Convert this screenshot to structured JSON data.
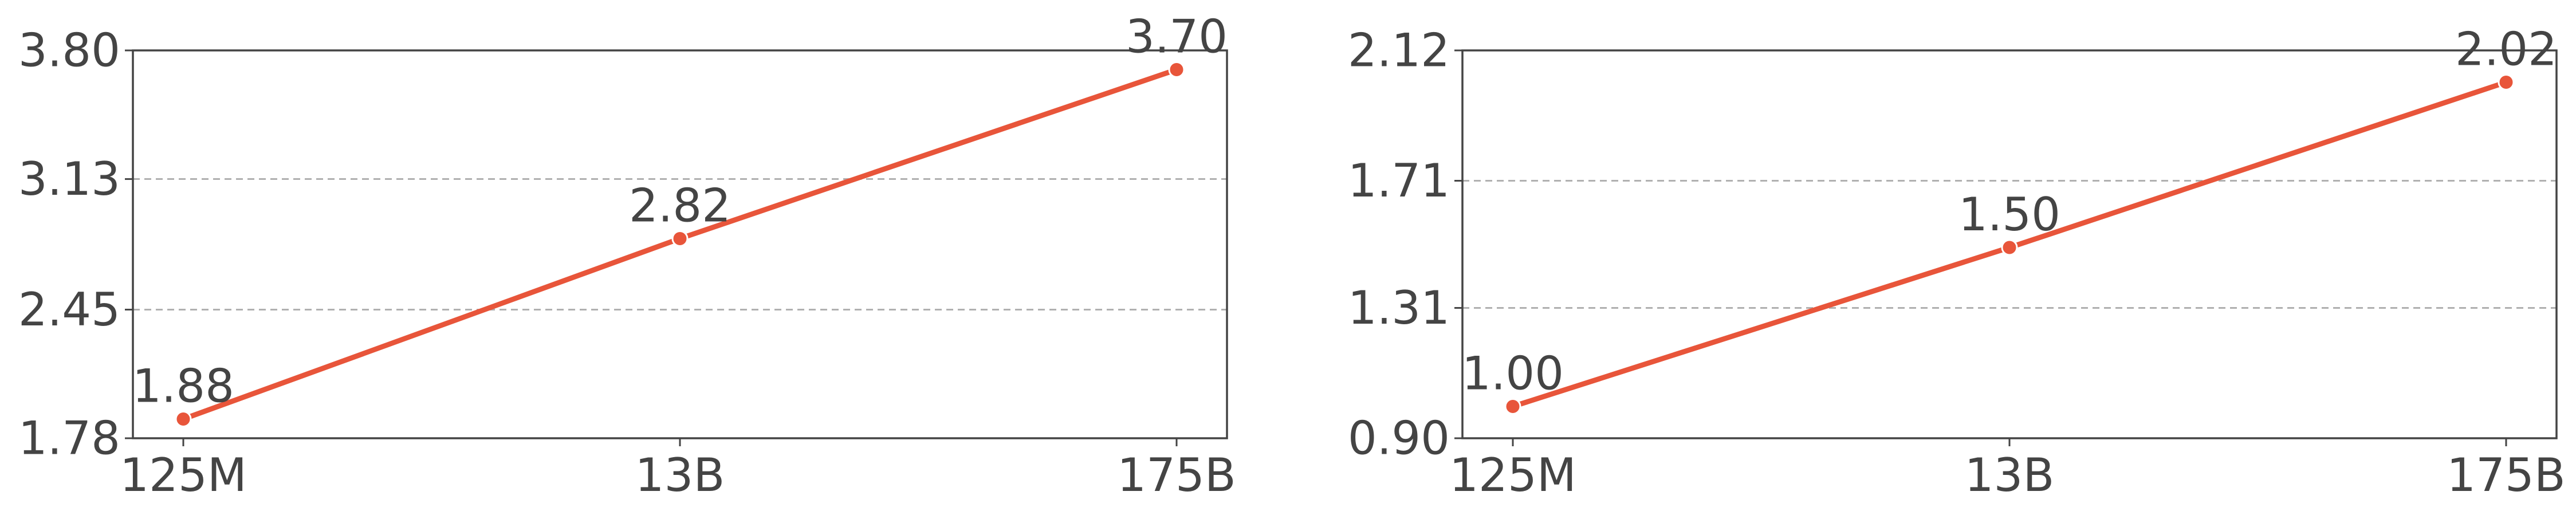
{
  "colors": {
    "line": "#e8553a",
    "axis": "#444444",
    "grid": "#b0b0b0",
    "text": "#444444"
  },
  "chart_data": [
    {
      "type": "line",
      "categories": [
        "125M",
        "13B",
        "175B"
      ],
      "values": [
        1.88,
        2.82,
        3.7
      ],
      "data_labels": [
        "1.88",
        "2.82",
        "3.70"
      ],
      "ylim": [
        1.78,
        3.8
      ],
      "yticks": [
        1.78,
        2.45,
        3.13,
        3.8
      ],
      "ytick_labels": [
        "1.78",
        "2.45",
        "3.13",
        "3.80"
      ],
      "grid": "horizontal dashed"
    },
    {
      "type": "line",
      "categories": [
        "125M",
        "13B",
        "175B"
      ],
      "values": [
        1.0,
        1.5,
        2.02
      ],
      "data_labels": [
        "1.00",
        "1.50",
        "2.02"
      ],
      "ylim": [
        0.9,
        2.12
      ],
      "yticks": [
        0.9,
        1.31,
        1.71,
        2.12
      ],
      "ytick_labels": [
        "0.90",
        "1.31",
        "1.71",
        "2.12"
      ],
      "grid": "horizontal dashed"
    }
  ]
}
